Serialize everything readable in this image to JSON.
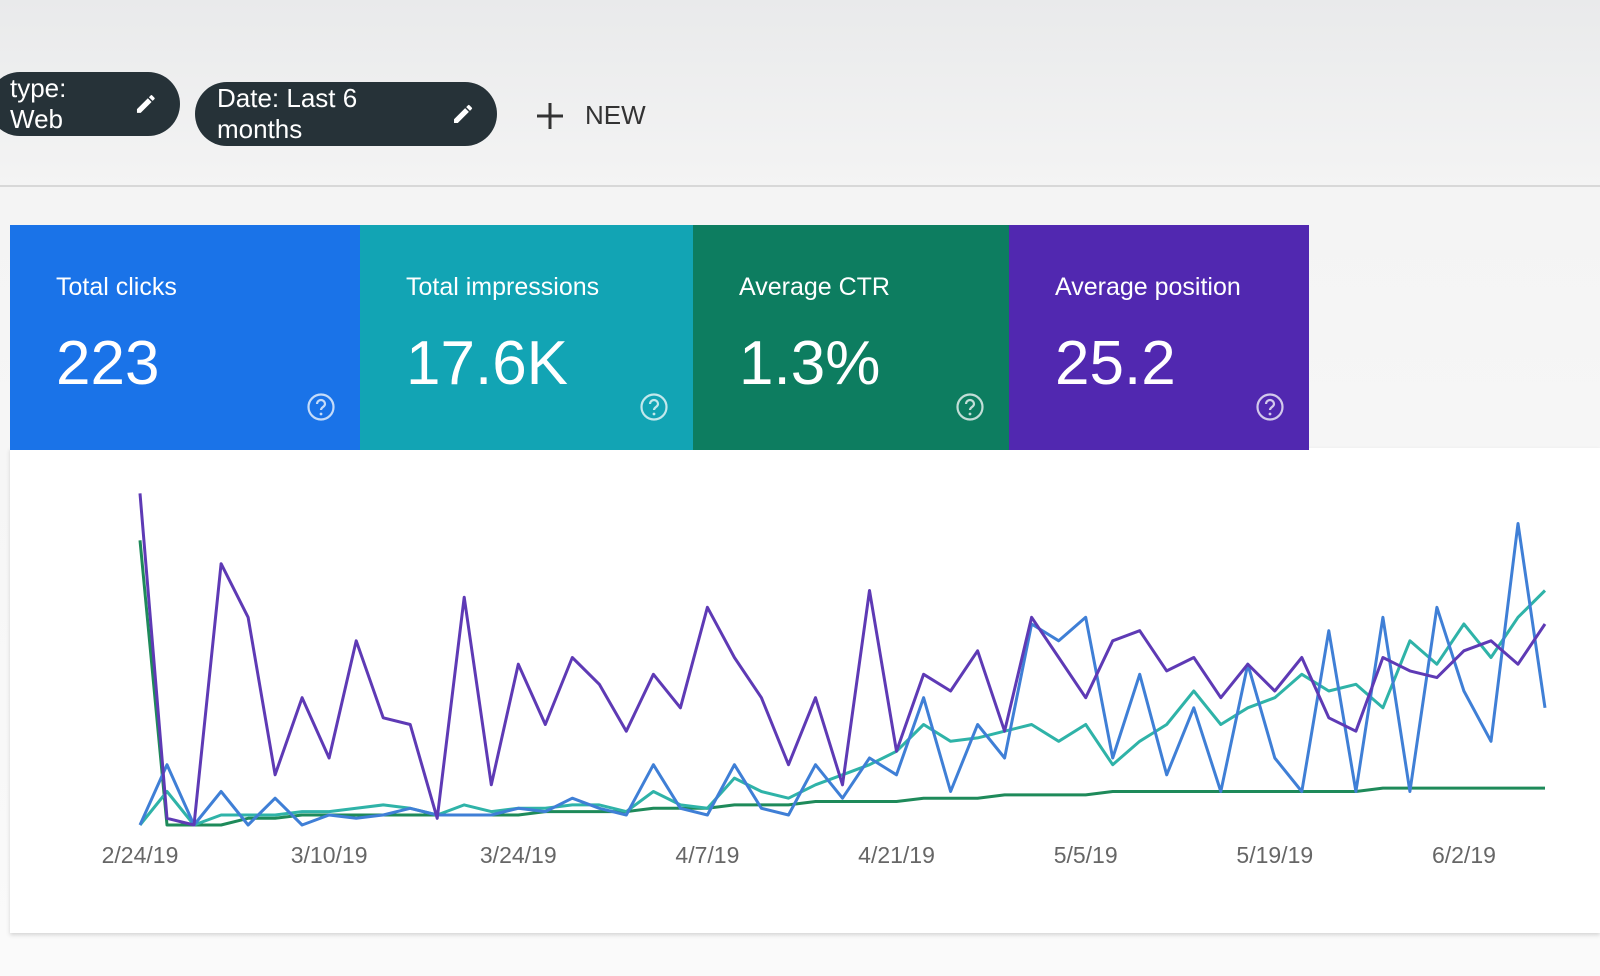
{
  "filters": [
    "type: Web",
    "Date: Last 6 months"
  ],
  "new_button": "NEW",
  "chart_data": {
    "type": "line",
    "ylim": [
      0,
      100
    ],
    "categories": [
      "2/24/19",
      null,
      null,
      null,
      null,
      null,
      null,
      "3/10/19",
      null,
      null,
      null,
      null,
      null,
      null,
      "3/24/19",
      null,
      null,
      null,
      null,
      null,
      null,
      "4/7/19",
      null,
      null,
      null,
      null,
      null,
      null,
      "4/21/19",
      null,
      null,
      null,
      null,
      null,
      null,
      "5/5/19",
      null,
      null,
      null,
      null,
      null,
      null,
      "5/19/19",
      null,
      null,
      null,
      null,
      null,
      null,
      "6/2/19",
      null,
      null,
      null
    ],
    "series": [
      {
        "name": "Total clicks",
        "total": "223",
        "card_color": "#1a73e8",
        "color": "#3f7fd6",
        "values": [
          0,
          18,
          0,
          10,
          0,
          8,
          0,
          3,
          2,
          3,
          5,
          3,
          3,
          3,
          5,
          4,
          8,
          5,
          3,
          18,
          5,
          3,
          18,
          5,
          3,
          18,
          8,
          20,
          15,
          38,
          10,
          30,
          20,
          60,
          55,
          62,
          20,
          45,
          15,
          35,
          10,
          48,
          20,
          10,
          58,
          10,
          62,
          10,
          65,
          40,
          25,
          90,
          35
        ]
      },
      {
        "name": "Total impressions",
        "total": "17.6K",
        "card_color": "#12a4b4",
        "color": "#2fb3a8",
        "values": [
          0,
          10,
          0,
          3,
          3,
          3,
          4,
          4,
          5,
          6,
          5,
          3,
          6,
          4,
          5,
          5,
          6,
          6,
          4,
          10,
          6,
          5,
          14,
          10,
          8,
          12,
          15,
          18,
          22,
          30,
          25,
          26,
          28,
          30,
          25,
          30,
          18,
          25,
          30,
          40,
          30,
          35,
          38,
          45,
          40,
          42,
          35,
          55,
          48,
          60,
          50,
          62,
          70
        ]
      },
      {
        "name": "Average CTR",
        "total": "1.3%",
        "card_color": "#0d7d60",
        "color": "#1e8a5a",
        "values": [
          85,
          0,
          0,
          0,
          2,
          2,
          3,
          3,
          3,
          3,
          3,
          3,
          3,
          3,
          3,
          4,
          4,
          4,
          4,
          5,
          5,
          5,
          6,
          6,
          6,
          7,
          7,
          7,
          7,
          8,
          8,
          8,
          9,
          9,
          9,
          9,
          10,
          10,
          10,
          10,
          10,
          10,
          10,
          10,
          10,
          10,
          11,
          11,
          11,
          11,
          11,
          11,
          11
        ]
      },
      {
        "name": "Average position",
        "total": "25.2",
        "card_color": "#5128b0",
        "color": "#5e3ab5",
        "values": [
          99,
          2,
          0,
          78,
          62,
          15,
          38,
          20,
          55,
          32,
          30,
          2,
          68,
          12,
          48,
          30,
          50,
          42,
          28,
          45,
          35,
          65,
          50,
          38,
          18,
          38,
          12,
          70,
          22,
          45,
          40,
          52,
          28,
          62,
          50,
          38,
          55,
          58,
          46,
          50,
          38,
          48,
          40,
          50,
          32,
          28,
          50,
          46,
          44,
          52,
          55,
          48,
          60
        ]
      }
    ]
  }
}
